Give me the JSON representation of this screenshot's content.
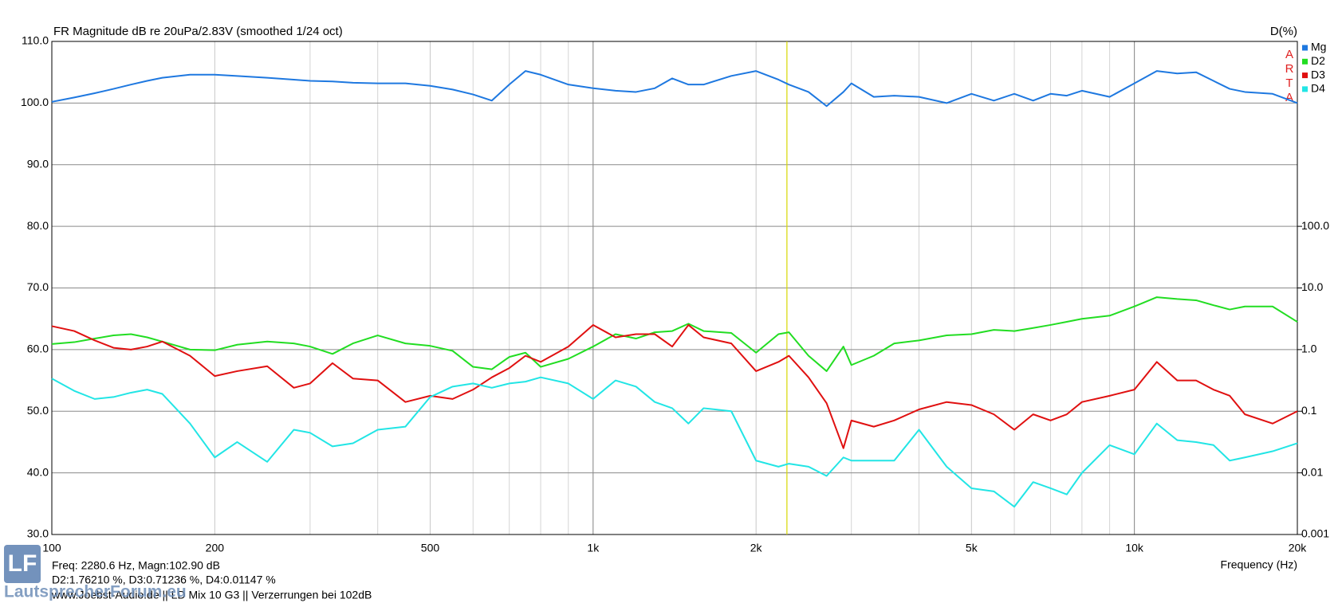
{
  "chart_data": {
    "type": "line",
    "title": "FR Magnitude dB re 20uPa/2.83V (smoothed 1/24 oct)",
    "y2_title": "D(%)",
    "xlabel": "Frequency (Hz)",
    "brand": "ARTA",
    "xscale": "log",
    "y2scale": "log",
    "xlim": [
      100,
      20000
    ],
    "xticks": [
      100,
      200,
      500,
      {
        "value": 1000,
        "label": "1k"
      },
      {
        "value": 2000,
        "label": "2k"
      },
      {
        "value": 5000,
        "label": "5k"
      },
      {
        "value": 10000,
        "label": "10k"
      },
      {
        "value": 20000,
        "label": "20k"
      }
    ],
    "xminor": [
      300,
      400,
      600,
      700,
      800,
      900,
      3000,
      4000,
      6000,
      7000,
      8000,
      9000
    ],
    "ylim": [
      30,
      110
    ],
    "yticks": [
      {
        "value": 30,
        "label": "30.0"
      },
      {
        "value": 40,
        "label": "40.0"
      },
      {
        "value": 50,
        "label": "50.0"
      },
      {
        "value": 60,
        "label": "60.0"
      },
      {
        "value": 70,
        "label": "70.0"
      },
      {
        "value": 80,
        "label": "80.0"
      },
      {
        "value": 90,
        "label": "90.0"
      },
      {
        "value": 100,
        "label": "100.0"
      },
      {
        "value": 110,
        "label": "110.0"
      }
    ],
    "y2lim": [
      0.001,
      100000
    ],
    "y2ticks": [
      0.001,
      0.01,
      0.1,
      {
        "value": 1,
        "label": "1.0"
      },
      {
        "value": 10,
        "label": "10.0"
      },
      {
        "value": 100,
        "label": "100.0"
      }
    ],
    "grid": true,
    "legend": "top-right",
    "cursor": 2280.6,
    "cursor_color": "#d8d800",
    "readout": [
      "Freq: 2280.6 Hz, Magn:102.90 dB",
      "D2:1.76210 %, D3:0.71236 %, D4:0.01147 %",
      "www.Joebst-Audio.de  ||  LD Mix 10 G3  ||  Verzerrungen bei 102dB"
    ],
    "logo": "LF",
    "watermark": "LautsprecherForum.eu",
    "x": [
      100,
      110,
      120,
      130,
      140,
      150,
      160,
      180,
      200,
      220,
      250,
      280,
      300,
      330,
      360,
      400,
      450,
      500,
      550,
      600,
      650,
      700,
      750,
      800,
      900,
      1000,
      1100,
      1200,
      1300,
      1400,
      1500,
      1600,
      1800,
      2000,
      2200,
      2300,
      2500,
      2700,
      2900,
      3000,
      3300,
      3600,
      4000,
      4500,
      5000,
      5500,
      6000,
      6500,
      7000,
      7500,
      8000,
      9000,
      10000,
      11000,
      12000,
      13000,
      14000,
      15000,
      16000,
      18000,
      20000
    ],
    "series": [
      {
        "name": "Mg",
        "color": "#1e78e0",
        "axis": "y",
        "values": [
          100.2,
          100.9,
          101.6,
          102.3,
          103.0,
          103.6,
          104.1,
          104.6,
          104.6,
          104.4,
          104.1,
          103.8,
          103.6,
          103.5,
          103.3,
          103.2,
          103.2,
          102.8,
          102.2,
          101.4,
          100.4,
          103.0,
          105.2,
          104.6,
          103.0,
          102.4,
          102.0,
          101.8,
          102.4,
          104.0,
          103.0,
          103.0,
          104.4,
          105.2,
          103.8,
          103.0,
          101.8,
          99.5,
          101.8,
          103.2,
          101.0,
          101.2,
          101.0,
          100.0,
          101.5,
          100.4,
          101.5,
          100.4,
          101.5,
          101.2,
          102.0,
          101.0,
          103.2,
          105.2,
          104.8,
          105.0,
          103.6,
          102.3,
          101.8,
          101.5,
          100.0
        ]
      },
      {
        "name": "D2",
        "color": "#22dd22",
        "axis": "y2",
        "values": [
          1.23,
          1.32,
          1.51,
          1.7,
          1.78,
          1.58,
          1.35,
          1.0,
          0.977,
          1.2,
          1.35,
          1.26,
          1.12,
          0.851,
          1.26,
          1.7,
          1.26,
          1.15,
          0.955,
          0.525,
          0.479,
          0.759,
          0.891,
          0.525,
          0.708,
          1.12,
          1.78,
          1.51,
          1.91,
          2.0,
          2.63,
          2.0,
          1.86,
          0.891,
          1.78,
          1.91,
          0.794,
          0.447,
          1.12,
          0.562,
          0.794,
          1.26,
          1.41,
          1.7,
          1.78,
          2.09,
          2.0,
          2.24,
          2.51,
          2.82,
          3.16,
          3.55,
          5.01,
          7.08,
          6.61,
          6.31,
          5.25,
          4.47,
          5.01,
          5.01,
          2.82
        ]
      },
      {
        "name": "D3",
        "color": "#e01010",
        "axis": "y2",
        "values": [
          2.4,
          2.0,
          1.41,
          1.07,
          1.0,
          1.12,
          1.35,
          0.794,
          0.372,
          0.447,
          0.537,
          0.24,
          0.282,
          0.603,
          0.339,
          0.316,
          0.141,
          0.178,
          0.158,
          0.224,
          0.355,
          0.501,
          0.794,
          0.631,
          1.12,
          2.51,
          1.58,
          1.78,
          1.78,
          1.12,
          2.51,
          1.58,
          1.26,
          0.447,
          0.631,
          0.794,
          0.355,
          0.135,
          0.0251,
          0.0708,
          0.0562,
          0.0708,
          0.107,
          0.141,
          0.126,
          0.0891,
          0.0501,
          0.0891,
          0.0708,
          0.0891,
          0.141,
          0.178,
          0.224,
          0.631,
          0.316,
          0.316,
          0.224,
          0.178,
          0.0891,
          0.0631,
          0.1
        ]
      },
      {
        "name": "D4",
        "color": "#22e5e5",
        "axis": "y2",
        "values": [
          0.339,
          0.214,
          0.158,
          0.17,
          0.2,
          0.224,
          0.191,
          0.0631,
          0.0178,
          0.0316,
          0.0151,
          0.0501,
          0.0447,
          0.0269,
          0.0302,
          0.0501,
          0.0562,
          0.17,
          0.251,
          0.282,
          0.24,
          0.282,
          0.302,
          0.355,
          0.282,
          0.158,
          0.316,
          0.251,
          0.141,
          0.112,
          0.0631,
          0.112,
          0.1,
          0.0158,
          0.0126,
          0.0141,
          0.0126,
          0.00891,
          0.0178,
          0.0158,
          0.0158,
          0.0158,
          0.0501,
          0.0126,
          0.00562,
          0.00501,
          0.00282,
          0.00708,
          0.00562,
          0.00447,
          0.01,
          0.0282,
          0.02,
          0.0631,
          0.0339,
          0.0316,
          0.0282,
          0.0158,
          0.0178,
          0.0224,
          0.0302
        ]
      }
    ]
  }
}
